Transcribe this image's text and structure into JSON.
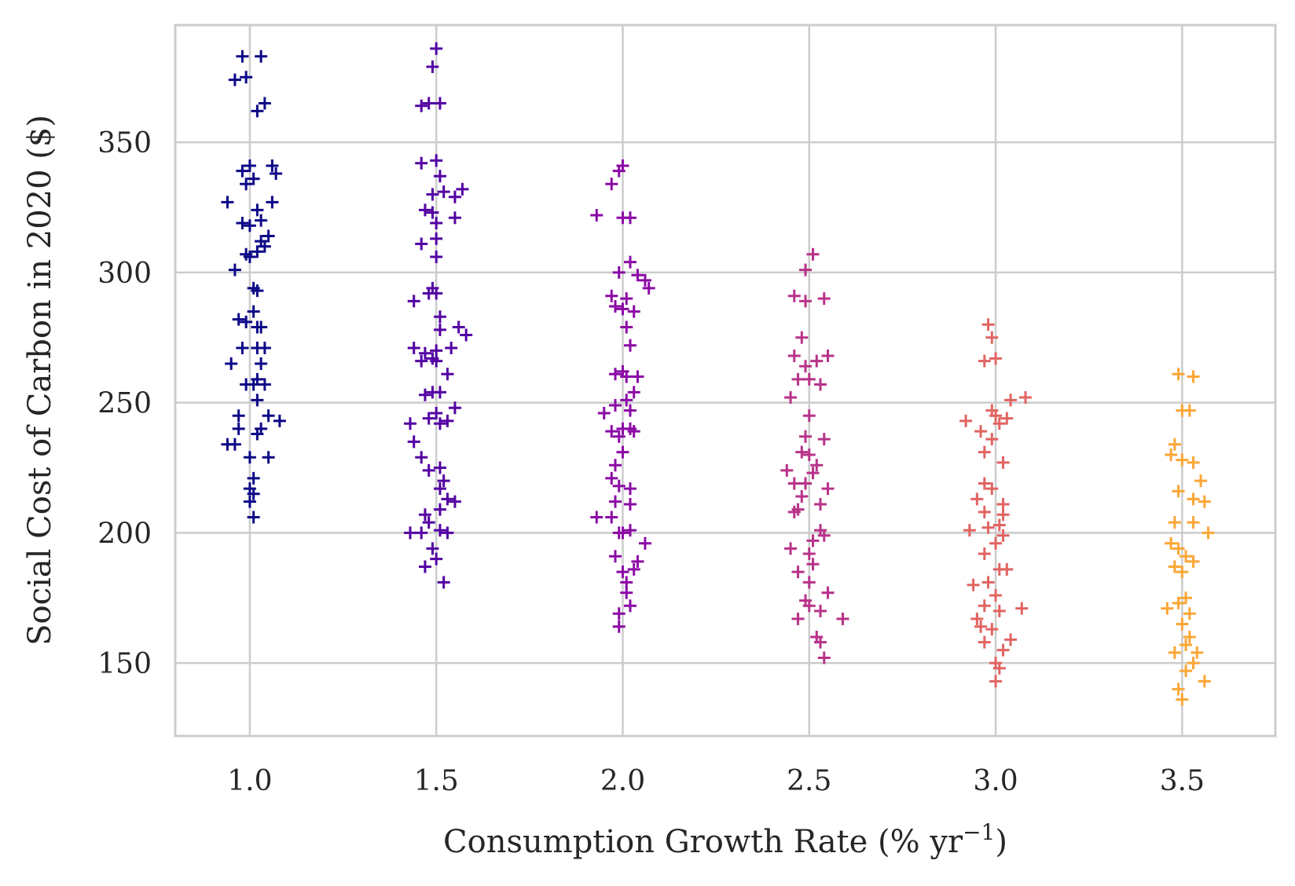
{
  "chart_data": {
    "type": "scatter",
    "marker": "plus",
    "xlabel_main": "Consumption Growth Rate (% yr",
    "xlabel_sup": "−1",
    "xlabel_tail": ")",
    "ylabel": "Social Cost of Carbon in 2020 ($)",
    "xlim": [
      0.8,
      3.75
    ],
    "ylim": [
      122,
      395
    ],
    "grid": true,
    "xticks": [
      1.0,
      1.5,
      2.0,
      2.5,
      3.0,
      3.5
    ],
    "xtick_labels": [
      "1.0",
      "1.5",
      "2.0",
      "2.5",
      "3.0",
      "3.5"
    ],
    "yticks": [
      150,
      200,
      250,
      300,
      350
    ],
    "ytick_labels": [
      "150",
      "200",
      "250",
      "300",
      "350"
    ],
    "series": [
      {
        "color": "#0d0887",
        "x_center": 1.0,
        "points": [
          [
            0.98,
            383
          ],
          [
            1.03,
            383
          ],
          [
            0.96,
            374
          ],
          [
            0.99,
            375
          ],
          [
            1.04,
            365
          ],
          [
            1.02,
            362
          ],
          [
            0.98,
            339
          ],
          [
            1.0,
            341
          ],
          [
            1.06,
            341
          ],
          [
            1.07,
            338
          ],
          [
            1.01,
            336
          ],
          [
            0.99,
            334
          ],
          [
            0.94,
            327
          ],
          [
            1.06,
            327
          ],
          [
            1.02,
            324
          ],
          [
            1.03,
            320
          ],
          [
            0.98,
            319
          ],
          [
            1.0,
            318
          ],
          [
            1.05,
            314
          ],
          [
            1.03,
            312
          ],
          [
            1.04,
            310
          ],
          [
            1.02,
            308
          ],
          [
            0.99,
            307
          ],
          [
            1.0,
            306
          ],
          [
            0.96,
            301
          ],
          [
            1.01,
            294
          ],
          [
            1.02,
            293
          ],
          [
            0.97,
            282
          ],
          [
            0.99,
            281
          ],
          [
            1.01,
            285
          ],
          [
            1.03,
            279
          ],
          [
            1.02,
            279
          ],
          [
            0.98,
            271
          ],
          [
            1.04,
            271
          ],
          [
            1.02,
            271
          ],
          [
            0.95,
            265
          ],
          [
            1.03,
            265
          ],
          [
            1.02,
            259
          ],
          [
            1.01,
            257
          ],
          [
            1.04,
            257
          ],
          [
            0.99,
            257
          ],
          [
            1.02,
            251
          ],
          [
            0.97,
            245
          ],
          [
            1.05,
            245
          ],
          [
            1.08,
            243
          ],
          [
            1.03,
            240
          ],
          [
            0.97,
            240
          ],
          [
            1.02,
            238
          ],
          [
            0.94,
            234
          ],
          [
            0.96,
            234
          ],
          [
            1.0,
            229
          ],
          [
            1.05,
            229
          ],
          [
            1.01,
            221
          ],
          [
            1.0,
            217
          ],
          [
            1.01,
            215
          ],
          [
            1.0,
            212
          ],
          [
            1.01,
            206
          ]
        ]
      },
      {
        "color": "#5302a3",
        "x_center": 1.5,
        "points": [
          [
            1.5,
            386
          ],
          [
            1.49,
            379
          ],
          [
            1.46,
            364
          ],
          [
            1.48,
            365
          ],
          [
            1.51,
            365
          ],
          [
            1.5,
            343
          ],
          [
            1.46,
            342
          ],
          [
            1.51,
            337
          ],
          [
            1.52,
            331
          ],
          [
            1.49,
            330
          ],
          [
            1.55,
            329
          ],
          [
            1.57,
            332
          ],
          [
            1.47,
            324
          ],
          [
            1.49,
            323
          ],
          [
            1.55,
            321
          ],
          [
            1.5,
            319
          ],
          [
            1.5,
            313
          ],
          [
            1.46,
            311
          ],
          [
            1.5,
            306
          ],
          [
            1.49,
            294
          ],
          [
            1.44,
            289
          ],
          [
            1.48,
            292
          ],
          [
            1.5,
            292
          ],
          [
            1.51,
            283
          ],
          [
            1.51,
            278
          ],
          [
            1.56,
            279
          ],
          [
            1.58,
            276
          ],
          [
            1.44,
            271
          ],
          [
            1.47,
            269
          ],
          [
            1.5,
            270
          ],
          [
            1.49,
            267
          ],
          [
            1.46,
            266
          ],
          [
            1.5,
            266
          ],
          [
            1.54,
            271
          ],
          [
            1.53,
            261
          ],
          [
            1.51,
            254
          ],
          [
            1.49,
            254
          ],
          [
            1.47,
            253
          ],
          [
            1.55,
            248
          ],
          [
            1.5,
            246
          ],
          [
            1.48,
            244
          ],
          [
            1.51,
            242
          ],
          [
            1.53,
            243
          ],
          [
            1.43,
            242
          ],
          [
            1.44,
            235
          ],
          [
            1.46,
            229
          ],
          [
            1.48,
            224
          ],
          [
            1.51,
            225
          ],
          [
            1.52,
            220
          ],
          [
            1.51,
            217
          ],
          [
            1.53,
            213
          ],
          [
            1.55,
            212
          ],
          [
            1.51,
            209
          ],
          [
            1.47,
            207
          ],
          [
            1.48,
            204
          ],
          [
            1.51,
            201
          ],
          [
            1.43,
            200
          ],
          [
            1.46,
            200
          ],
          [
            1.53,
            200
          ],
          [
            1.49,
            194
          ],
          [
            1.5,
            190
          ],
          [
            1.47,
            187
          ],
          [
            1.52,
            181
          ]
        ]
      },
      {
        "color": "#8b0aa5",
        "x_center": 2.0,
        "points": [
          [
            2.0,
            341
          ],
          [
            1.99,
            339
          ],
          [
            1.97,
            334
          ],
          [
            1.93,
            322
          ],
          [
            2.0,
            321
          ],
          [
            2.02,
            321
          ],
          [
            2.02,
            304
          ],
          [
            1.99,
            300
          ],
          [
            2.04,
            299
          ],
          [
            2.07,
            294
          ],
          [
            1.97,
            291
          ],
          [
            2.01,
            290
          ],
          [
            2.06,
            297
          ],
          [
            1.98,
            287
          ],
          [
            2.0,
            286
          ],
          [
            2.03,
            285
          ],
          [
            2.01,
            279
          ],
          [
            2.02,
            272
          ],
          [
            2.0,
            262
          ],
          [
            2.01,
            260
          ],
          [
            1.98,
            261
          ],
          [
            2.04,
            260
          ],
          [
            2.03,
            254
          ],
          [
            2.01,
            251
          ],
          [
            1.98,
            249
          ],
          [
            2.02,
            247
          ],
          [
            1.95,
            246
          ],
          [
            2.0,
            240
          ],
          [
            2.02,
            240
          ],
          [
            1.97,
            239
          ],
          [
            2.03,
            239
          ],
          [
            1.99,
            237
          ],
          [
            2.0,
            231
          ],
          [
            1.98,
            226
          ],
          [
            1.97,
            221
          ],
          [
            1.99,
            218
          ],
          [
            2.02,
            217
          ],
          [
            1.98,
            212
          ],
          [
            2.02,
            211
          ],
          [
            1.97,
            206
          ],
          [
            1.93,
            206
          ],
          [
            2.02,
            201
          ],
          [
            1.99,
            200
          ],
          [
            2.0,
            200
          ],
          [
            2.06,
            196
          ],
          [
            1.98,
            191
          ],
          [
            2.04,
            189
          ],
          [
            2.03,
            186
          ],
          [
            2.0,
            185
          ],
          [
            2.01,
            181
          ],
          [
            2.01,
            177
          ],
          [
            2.02,
            172
          ],
          [
            1.99,
            169
          ],
          [
            1.99,
            164
          ]
        ]
      },
      {
        "color": "#b83289",
        "x_center": 2.5,
        "points": [
          [
            2.51,
            307
          ],
          [
            2.49,
            301
          ],
          [
            2.46,
            291
          ],
          [
            2.49,
            289
          ],
          [
            2.54,
            290
          ],
          [
            2.48,
            275
          ],
          [
            2.46,
            268
          ],
          [
            2.49,
            264
          ],
          [
            2.52,
            266
          ],
          [
            2.55,
            268
          ],
          [
            2.47,
            259
          ],
          [
            2.5,
            259
          ],
          [
            2.53,
            257
          ],
          [
            2.45,
            252
          ],
          [
            2.5,
            245
          ],
          [
            2.49,
            237
          ],
          [
            2.54,
            236
          ],
          [
            2.48,
            231
          ],
          [
            2.5,
            230
          ],
          [
            2.52,
            226
          ],
          [
            2.51,
            223
          ],
          [
            2.44,
            224
          ],
          [
            2.46,
            219
          ],
          [
            2.49,
            219
          ],
          [
            2.48,
            214
          ],
          [
            2.55,
            217
          ],
          [
            2.53,
            211
          ],
          [
            2.47,
            209
          ],
          [
            2.46,
            208
          ],
          [
            2.53,
            201
          ],
          [
            2.54,
            199
          ],
          [
            2.51,
            197
          ],
          [
            2.5,
            192
          ],
          [
            2.45,
            194
          ],
          [
            2.51,
            188
          ],
          [
            2.47,
            185
          ],
          [
            2.5,
            181
          ],
          [
            2.55,
            177
          ],
          [
            2.49,
            174
          ],
          [
            2.5,
            172
          ],
          [
            2.53,
            170
          ],
          [
            2.47,
            167
          ],
          [
            2.59,
            167
          ],
          [
            2.52,
            160
          ],
          [
            2.53,
            158
          ],
          [
            2.54,
            152
          ]
        ]
      },
      {
        "color": "#e16462",
        "x_center": 3.0,
        "points": [
          [
            2.98,
            280
          ],
          [
            2.99,
            275
          ],
          [
            2.97,
            266
          ],
          [
            3.0,
            267
          ],
          [
            3.04,
            251
          ],
          [
            3.08,
            252
          ],
          [
            2.99,
            247
          ],
          [
            3.0,
            245
          ],
          [
            3.03,
            244
          ],
          [
            2.92,
            243
          ],
          [
            2.96,
            239
          ],
          [
            3.01,
            242
          ],
          [
            2.99,
            236
          ],
          [
            2.97,
            231
          ],
          [
            3.02,
            227
          ],
          [
            2.97,
            219
          ],
          [
            2.99,
            217
          ],
          [
            2.95,
            213
          ],
          [
            3.02,
            211
          ],
          [
            2.97,
            208
          ],
          [
            3.02,
            207
          ],
          [
            3.01,
            203
          ],
          [
            2.98,
            202
          ],
          [
            2.93,
            201
          ],
          [
            3.02,
            199
          ],
          [
            3.0,
            196
          ],
          [
            2.97,
            192
          ],
          [
            3.01,
            186
          ],
          [
            3.03,
            186
          ],
          [
            2.98,
            181
          ],
          [
            2.94,
            180
          ],
          [
            3.0,
            176
          ],
          [
            2.97,
            172
          ],
          [
            3.01,
            170
          ],
          [
            2.95,
            167
          ],
          [
            3.07,
            171
          ],
          [
            2.96,
            164
          ],
          [
            2.99,
            163
          ],
          [
            3.04,
            159
          ],
          [
            2.97,
            158
          ],
          [
            3.02,
            155
          ],
          [
            3.0,
            150
          ],
          [
            3.01,
            148
          ],
          [
            3.0,
            143
          ]
        ]
      },
      {
        "color": "#fca636",
        "x_center": 3.5,
        "points": [
          [
            3.49,
            261
          ],
          [
            3.53,
            260
          ],
          [
            3.5,
            247
          ],
          [
            3.52,
            247
          ],
          [
            3.48,
            234
          ],
          [
            3.47,
            230
          ],
          [
            3.5,
            228
          ],
          [
            3.53,
            227
          ],
          [
            3.55,
            220
          ],
          [
            3.49,
            216
          ],
          [
            3.53,
            213
          ],
          [
            3.56,
            212
          ],
          [
            3.48,
            204
          ],
          [
            3.53,
            204
          ],
          [
            3.57,
            200
          ],
          [
            3.47,
            196
          ],
          [
            3.49,
            194
          ],
          [
            3.51,
            191
          ],
          [
            3.53,
            189
          ],
          [
            3.48,
            187
          ],
          [
            3.5,
            185
          ],
          [
            3.51,
            175
          ],
          [
            3.49,
            173
          ],
          [
            3.46,
            171
          ],
          [
            3.52,
            169
          ],
          [
            3.5,
            165
          ],
          [
            3.52,
            160
          ],
          [
            3.51,
            157
          ],
          [
            3.48,
            154
          ],
          [
            3.54,
            154
          ],
          [
            3.53,
            150
          ],
          [
            3.51,
            147
          ],
          [
            3.56,
            143
          ],
          [
            3.49,
            140
          ],
          [
            3.5,
            136
          ]
        ]
      }
    ]
  }
}
